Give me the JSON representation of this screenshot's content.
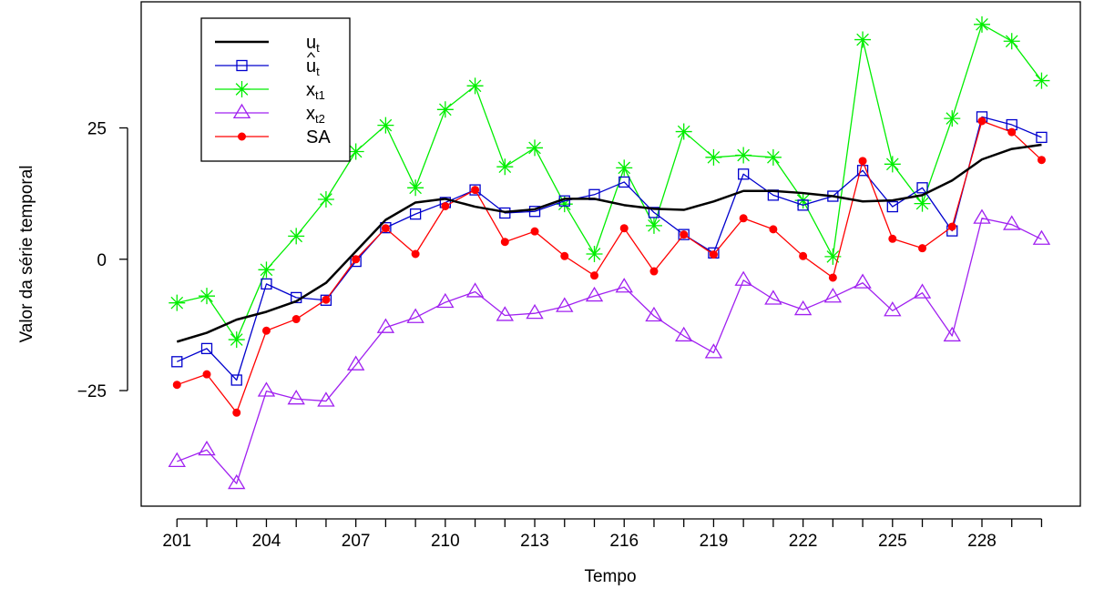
{
  "chart_data": {
    "type": "line",
    "title": "",
    "xlabel": "Tempo",
    "ylabel": "Valor da série temporal",
    "x": [
      201,
      202,
      203,
      204,
      205,
      206,
      207,
      208,
      209,
      210,
      211,
      212,
      213,
      214,
      215,
      216,
      217,
      218,
      219,
      220,
      221,
      222,
      223,
      224,
      225,
      226,
      227,
      228,
      229,
      230
    ],
    "xticks": [
      201,
      204,
      207,
      210,
      213,
      216,
      219,
      222,
      225,
      228
    ],
    "xtick_labels": [
      "201",
      "204",
      "207",
      "210",
      "213",
      "216",
      "219",
      "222",
      "225",
      "228"
    ],
    "yticks": [
      -25,
      0,
      25
    ],
    "ytick_labels": [
      "−25",
      "0",
      "25"
    ],
    "xlim": [
      199.8,
      231.3
    ],
    "ylim": [
      -47,
      49
    ],
    "grid": false,
    "legend_position": "top-left",
    "series": [
      {
        "name": "u",
        "name_sub": "t",
        "name_hat": false,
        "color": "#000000",
        "marker": "none",
        "line_width": 2.5,
        "values": [
          -15.7,
          -14.0,
          -11.5,
          -10.0,
          -8.0,
          -4.5,
          1.5,
          7.5,
          10.8,
          11.5,
          10.0,
          9.0,
          9.5,
          11.5,
          11.5,
          10.3,
          9.6,
          9.4,
          11.0,
          13.0,
          13.0,
          12.6,
          12.0,
          11.0,
          11.2,
          12.2,
          15.0,
          19.0,
          21.0,
          21.8
        ]
      },
      {
        "name": "u",
        "name_sub": "t",
        "name_hat": true,
        "color": "#0000cd",
        "marker": "square",
        "line_width": 1.3,
        "values": [
          -19.5,
          -17.0,
          -23.0,
          -4.7,
          -7.3,
          -7.8,
          -0.4,
          6.0,
          8.6,
          10.8,
          13.2,
          8.8,
          9.1,
          11.1,
          12.3,
          14.7,
          8.9,
          4.7,
          1.2,
          16.2,
          12.2,
          10.3,
          12.0,
          16.9,
          10.0,
          13.6,
          5.4,
          27.1,
          25.6,
          23.2
        ]
      },
      {
        "name": "x",
        "name_sub": "t1",
        "name_hat": false,
        "color": "#00ee00",
        "marker": "asterisk",
        "line_width": 1.3,
        "values": [
          -8.3,
          -7.0,
          -15.3,
          -2.0,
          4.4,
          11.4,
          20.5,
          25.5,
          13.6,
          28.5,
          33.0,
          17.6,
          21.2,
          10.5,
          1.0,
          17.4,
          6.4,
          24.3,
          19.4,
          19.8,
          19.4,
          11.2,
          0.5,
          41.8,
          18.1,
          10.6,
          26.8,
          44.7,
          41.5,
          34.0
        ]
      },
      {
        "name": "x",
        "name_sub": "t2",
        "name_hat": false,
        "color": "#a020f0",
        "marker": "triangle",
        "line_width": 1.3,
        "values": [
          -38.5,
          -36.3,
          -42.7,
          -25.1,
          -26.6,
          -27.0,
          -20.1,
          -13.0,
          -11.1,
          -8.2,
          -6.2,
          -10.7,
          -10.3,
          -9.0,
          -7.0,
          -5.3,
          -10.8,
          -14.6,
          -17.8,
          -4.0,
          -7.6,
          -9.6,
          -7.2,
          -4.5,
          -9.8,
          -6.4,
          -14.6,
          7.8,
          6.6,
          3.8
        ]
      },
      {
        "name": "SA",
        "name_sub": "",
        "name_hat": false,
        "color": "#ff0000",
        "marker": "dot",
        "line_width": 1.3,
        "values": [
          -23.9,
          -21.9,
          -29.2,
          -13.6,
          -11.4,
          -7.7,
          0.0,
          5.9,
          1.0,
          10.1,
          13.2,
          3.3,
          5.3,
          0.6,
          -3.1,
          5.9,
          -2.3,
          4.7,
          0.9,
          7.8,
          5.7,
          0.6,
          -3.5,
          18.7,
          3.9,
          2.1,
          6.2,
          26.3,
          24.2,
          18.9
        ]
      }
    ]
  }
}
